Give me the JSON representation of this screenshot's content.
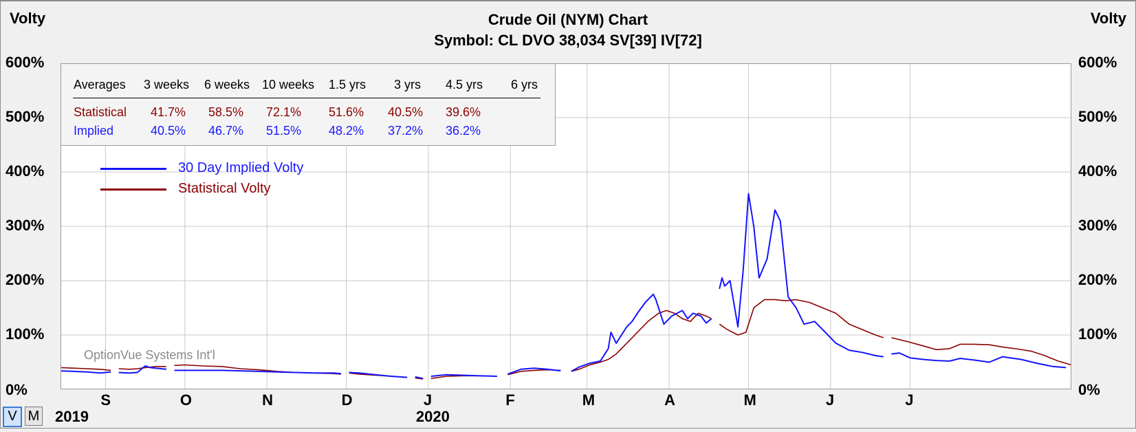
{
  "title": "Crude Oil (NYM) Chart",
  "subtitle": "Symbol: CL  DVO 38,034  SV[39]  IV[72]",
  "left_axis_title": "Volty",
  "right_axis_title": "Volty",
  "watermark": "OptionVue Systems Int'l",
  "buttons": {
    "v_label": "V",
    "m_label": "M",
    "active": "V"
  },
  "averages": {
    "header_label": "Averages",
    "periods": [
      "3 weeks",
      "6 weeks",
      "10 weeks",
      "1.5 yrs",
      "3 yrs",
      "4.5 yrs",
      "6 yrs"
    ],
    "statistical": {
      "label": "Statistical",
      "values": [
        "41.7%",
        "58.5%",
        "72.1%",
        "51.6%",
        "40.5%",
        "39.6%",
        ""
      ]
    },
    "implied": {
      "label": "Implied",
      "values": [
        "40.5%",
        "46.7%",
        "51.5%",
        "48.2%",
        "37.2%",
        "36.2%",
        ""
      ]
    }
  },
  "colors": {
    "implied": "#1414ff",
    "statistical": "#8b0000",
    "grid": "#c8c8c8",
    "plot_bg": "#ffffff"
  },
  "chart_data": {
    "type": "line",
    "title": "Crude Oil (NYM) Chart",
    "subtitle": "Symbol: CL  DVO 38,034  SV[39]  IV[72]",
    "ylabel": "Volty",
    "ylim": [
      0,
      600
    ],
    "yticks": [
      0,
      100,
      200,
      300,
      400,
      500,
      600
    ],
    "ytick_labels": [
      "0%",
      "100%",
      "200%",
      "300%",
      "400%",
      "500%",
      "600%"
    ],
    "xlim": [
      "2019-08-15",
      "2020-08-31"
    ],
    "xticks": [
      {
        "date": "2019-09-01",
        "label": "S"
      },
      {
        "date": "2019-10-01",
        "label": "O"
      },
      {
        "date": "2019-11-01",
        "label": "N"
      },
      {
        "date": "2019-12-01",
        "label": "D"
      },
      {
        "date": "2020-01-01",
        "label": "J"
      },
      {
        "date": "2020-02-01",
        "label": "F"
      },
      {
        "date": "2020-03-01",
        "label": "M"
      },
      {
        "date": "2020-04-01",
        "label": "A"
      },
      {
        "date": "2020-05-01",
        "label": "M"
      },
      {
        "date": "2020-06-01",
        "label": "J"
      },
      {
        "date": "2020-07-01",
        "label": "J"
      }
    ],
    "year_labels": [
      {
        "date": "2019-08-15",
        "label": "2019"
      },
      {
        "date": "2020-01-01",
        "label": "2020"
      }
    ],
    "grid": true,
    "legend_placement": "upper-left",
    "series": [
      {
        "name": "30 Day Implied Volty",
        "color": "#1414ff",
        "segments": [
          [
            [
              "2019-08-15",
              34
            ],
            [
              "2019-08-20",
              33
            ],
            [
              "2019-08-25",
              32
            ],
            [
              "2019-08-30",
              30
            ],
            [
              "2019-09-03",
              32
            ]
          ],
          [
            [
              "2019-09-06",
              31
            ],
            [
              "2019-09-10",
              30
            ],
            [
              "2019-09-13",
              31
            ],
            [
              "2019-09-16",
              43
            ],
            [
              "2019-09-18",
              40
            ],
            [
              "2019-09-20",
              39
            ],
            [
              "2019-09-24",
              37
            ]
          ],
          [
            [
              "2019-09-27",
              35
            ],
            [
              "2019-10-01",
              35
            ],
            [
              "2019-10-08",
              35
            ],
            [
              "2019-10-15",
              35
            ],
            [
              "2019-10-22",
              34
            ],
            [
              "2019-10-29",
              33
            ],
            [
              "2019-11-05",
              32
            ],
            [
              "2019-11-12",
              31
            ],
            [
              "2019-11-19",
              30
            ],
            [
              "2019-11-26",
              30
            ],
            [
              "2019-11-29",
              29
            ]
          ],
          [
            [
              "2019-12-02",
              31
            ],
            [
              "2019-12-06",
              30
            ],
            [
              "2019-12-12",
              27
            ],
            [
              "2019-12-18",
              24
            ],
            [
              "2019-12-24",
              22
            ]
          ],
          [
            [
              "2019-12-27",
              23
            ],
            [
              "2019-12-30",
              20
            ]
          ],
          [
            [
              "2020-01-02",
              24
            ],
            [
              "2020-01-08",
              27
            ],
            [
              "2020-01-14",
              26
            ],
            [
              "2020-01-20",
              25
            ],
            [
              "2020-01-27",
              24
            ]
          ],
          [
            [
              "2020-01-31",
              28
            ],
            [
              "2020-02-05",
              37
            ],
            [
              "2020-02-10",
              39
            ],
            [
              "2020-02-15",
              37
            ],
            [
              "2020-02-20",
              34
            ]
          ],
          [
            [
              "2020-02-24",
              33
            ],
            [
              "2020-02-27",
              41
            ],
            [
              "2020-03-02",
              48
            ],
            [
              "2020-03-06",
              52
            ],
            [
              "2020-03-09",
              75
            ],
            [
              "2020-03-10",
              105
            ],
            [
              "2020-03-12",
              85
            ],
            [
              "2020-03-16",
              115
            ],
            [
              "2020-03-18",
              125
            ],
            [
              "2020-03-20",
              140
            ],
            [
              "2020-03-23",
              160
            ],
            [
              "2020-03-26",
              175
            ],
            [
              "2020-03-27",
              165
            ],
            [
              "2020-03-30",
              120
            ],
            [
              "2020-04-02",
              135
            ],
            [
              "2020-04-06",
              145
            ],
            [
              "2020-04-08",
              130
            ],
            [
              "2020-04-10",
              140
            ],
            [
              "2020-04-13",
              135
            ],
            [
              "2020-04-15",
              122
            ],
            [
              "2020-04-17",
              130
            ]
          ],
          [
            [
              "2020-04-20",
              185
            ],
            [
              "2020-04-21",
              205
            ],
            [
              "2020-04-22",
              190
            ],
            [
              "2020-04-24",
              200
            ],
            [
              "2020-04-27",
              115
            ],
            [
              "2020-04-29",
              220
            ],
            [
              "2020-05-01",
              360
            ],
            [
              "2020-05-03",
              300
            ],
            [
              "2020-05-05",
              205
            ],
            [
              "2020-05-08",
              240
            ],
            [
              "2020-05-11",
              330
            ],
            [
              "2020-05-13",
              310
            ],
            [
              "2020-05-16",
              170
            ],
            [
              "2020-05-19",
              150
            ],
            [
              "2020-05-22",
              120
            ],
            [
              "2020-05-26",
              125
            ],
            [
              "2020-05-30",
              105
            ],
            [
              "2020-06-03",
              85
            ],
            [
              "2020-06-08",
              72
            ],
            [
              "2020-06-13",
              68
            ],
            [
              "2020-06-18",
              62
            ],
            [
              "2020-06-21",
              60
            ]
          ],
          [
            [
              "2020-06-24",
              65
            ],
            [
              "2020-06-27",
              67
            ],
            [
              "2020-07-01",
              58
            ],
            [
              "2020-07-06",
              55
            ],
            [
              "2020-07-11",
              53
            ],
            [
              "2020-07-16",
              52
            ],
            [
              "2020-07-20",
              57
            ],
            [
              "2020-07-25",
              54
            ],
            [
              "2020-07-31",
              50
            ],
            [
              "2020-08-05",
              60
            ],
            [
              "2020-08-12",
              55
            ],
            [
              "2020-08-18",
              48
            ],
            [
              "2020-08-24",
              42
            ],
            [
              "2020-08-29",
              40
            ],
            [
              "2020-09-03",
              38
            ],
            [
              "2020-09-08",
              39
            ],
            [
              "2020-09-11",
              40
            ],
            [
              "2020-09-14",
              38
            ]
          ]
        ]
      },
      {
        "name": "Statistical Volty",
        "color": "#8b0000",
        "segments": [
          [
            [
              "2019-08-15",
              40
            ],
            [
              "2019-08-20",
              39
            ],
            [
              "2019-08-25",
              38
            ],
            [
              "2019-08-30",
              37
            ],
            [
              "2019-09-03",
              35
            ]
          ],
          [
            [
              "2019-09-06",
              38
            ],
            [
              "2019-09-10",
              37
            ],
            [
              "2019-09-13",
              38
            ],
            [
              "2019-09-16",
              40
            ],
            [
              "2019-09-20",
              42
            ],
            [
              "2019-09-24",
              42
            ]
          ],
          [
            [
              "2019-09-27",
              44
            ],
            [
              "2019-10-01",
              45
            ],
            [
              "2019-10-08",
              43
            ],
            [
              "2019-10-15",
              42
            ],
            [
              "2019-10-22",
              38
            ],
            [
              "2019-10-29",
              36
            ],
            [
              "2019-11-05",
              33
            ],
            [
              "2019-11-12",
              31
            ],
            [
              "2019-11-19",
              30
            ],
            [
              "2019-11-26",
              29
            ],
            [
              "2019-11-29",
              28
            ]
          ],
          [
            [
              "2019-12-02",
              30
            ],
            [
              "2019-12-06",
              28
            ],
            [
              "2019-12-12",
              26
            ],
            [
              "2019-12-18",
              24
            ],
            [
              "2019-12-24",
              22
            ]
          ],
          [
            [
              "2019-12-27",
              21
            ],
            [
              "2019-12-30",
              19
            ]
          ],
          [
            [
              "2020-01-02",
              20
            ],
            [
              "2020-01-08",
              24
            ],
            [
              "2020-01-14",
              25
            ],
            [
              "2020-01-20",
              25
            ],
            [
              "2020-01-27",
              24
            ]
          ],
          [
            [
              "2020-01-31",
              27
            ],
            [
              "2020-02-05",
              33
            ],
            [
              "2020-02-10",
              35
            ],
            [
              "2020-02-15",
              36
            ],
            [
              "2020-02-20",
              35
            ]
          ],
          [
            [
              "2020-02-24",
              33
            ],
            [
              "2020-02-27",
              37
            ],
            [
              "2020-03-02",
              45
            ],
            [
              "2020-03-06",
              50
            ],
            [
              "2020-03-09",
              55
            ],
            [
              "2020-03-12",
              65
            ],
            [
              "2020-03-16",
              85
            ],
            [
              "2020-03-20",
              105
            ],
            [
              "2020-03-24",
              125
            ],
            [
              "2020-03-28",
              140
            ],
            [
              "2020-03-31",
              145
            ],
            [
              "2020-04-03",
              140
            ],
            [
              "2020-04-06",
              130
            ],
            [
              "2020-04-09",
              125
            ],
            [
              "2020-04-12",
              140
            ],
            [
              "2020-04-15",
              135
            ],
            [
              "2020-04-17",
              130
            ]
          ],
          [
            [
              "2020-04-20",
              120
            ],
            [
              "2020-04-23",
              110
            ],
            [
              "2020-04-27",
              100
            ],
            [
              "2020-04-30",
              105
            ],
            [
              "2020-05-03",
              150
            ],
            [
              "2020-05-07",
              165
            ],
            [
              "2020-05-11",
              165
            ],
            [
              "2020-05-15",
              163
            ],
            [
              "2020-05-19",
              165
            ],
            [
              "2020-05-24",
              160
            ],
            [
              "2020-05-29",
              150
            ],
            [
              "2020-06-03",
              140
            ],
            [
              "2020-06-08",
              120
            ],
            [
              "2020-06-13",
              110
            ],
            [
              "2020-06-18",
              100
            ],
            [
              "2020-06-21",
              95
            ]
          ],
          [
            [
              "2020-06-24",
              95
            ],
            [
              "2020-06-30",
              88
            ],
            [
              "2020-07-06",
              80
            ],
            [
              "2020-07-11",
              73
            ],
            [
              "2020-07-16",
              75
            ],
            [
              "2020-07-20",
              83
            ],
            [
              "2020-07-25",
              83
            ],
            [
              "2020-07-31",
              82
            ],
            [
              "2020-08-05",
              78
            ],
            [
              "2020-08-11",
              74
            ],
            [
              "2020-08-16",
              70
            ],
            [
              "2020-08-21",
              62
            ],
            [
              "2020-08-26",
              52
            ],
            [
              "2020-08-31",
              45
            ],
            [
              "2020-09-04",
              40
            ],
            [
              "2020-09-08",
              37
            ],
            [
              "2020-09-11",
              35
            ],
            [
              "2020-09-14",
              30
            ]
          ]
        ]
      }
    ]
  }
}
